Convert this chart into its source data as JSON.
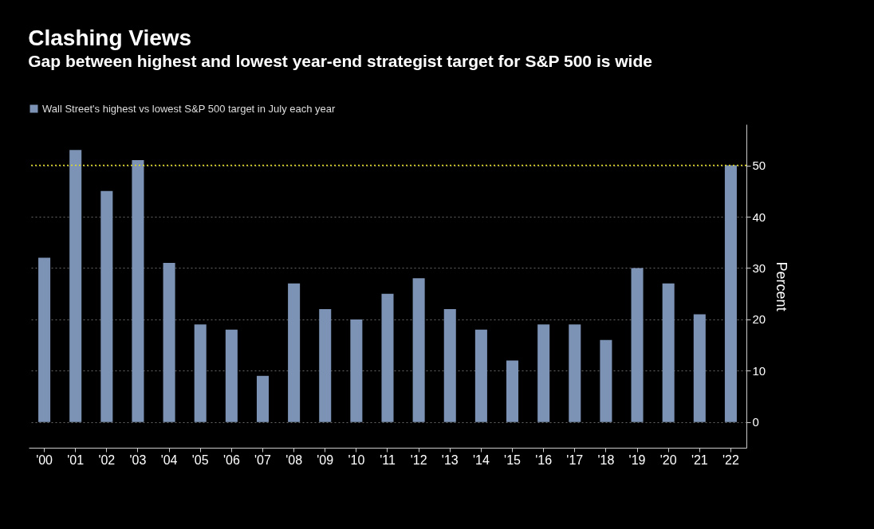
{
  "chart_data": {
    "type": "bar",
    "title": "Clashing Views",
    "subtitle": "Gap between highest and lowest year-end strategist target for S&P 500 is wide",
    "ylabel": "Percent",
    "categories": [
      "'00",
      "'01",
      "'02",
      "'03",
      "'04",
      "'05",
      "'06",
      "'07",
      "'08",
      "'09",
      "'10",
      "'11",
      "'12",
      "'13",
      "'14",
      "'15",
      "'16",
      "'17",
      "'18",
      "'19",
      "'20",
      "'21",
      "'22"
    ],
    "series": [
      {
        "name": "Wall Street's highest vs lowest S&P 500 target in July each year",
        "color": "#7d93b5",
        "values": [
          32,
          53,
          45,
          51,
          31,
          19,
          18,
          9,
          27,
          22,
          20,
          25,
          28,
          22,
          18,
          12,
          19,
          19,
          16,
          30,
          27,
          21,
          50
        ]
      }
    ],
    "ylim": [
      -5,
      58
    ],
    "yticks": [
      0,
      10,
      20,
      30,
      40,
      50
    ],
    "grid": "y",
    "legend": "top left",
    "ref_lines": [
      {
        "axis": "y",
        "value": 50,
        "color": "#e6e020",
        "line_style": "dotted"
      }
    ]
  }
}
